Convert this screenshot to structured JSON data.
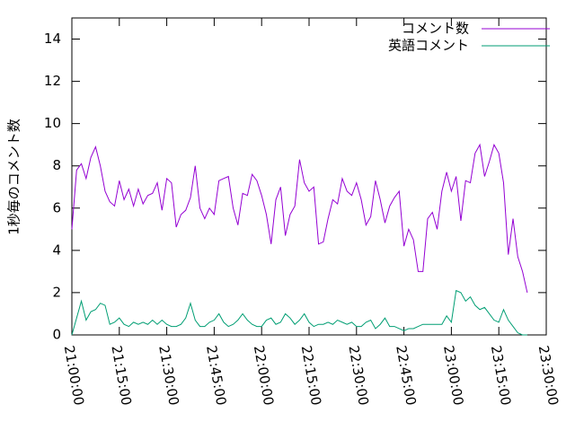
{
  "chart_data": {
    "type": "line",
    "y_label": "1秒毎のコメント数",
    "x": [
      "21:00:00",
      "21:01:30",
      "21:03:00",
      "21:04:30",
      "21:06:00",
      "21:07:30",
      "21:09:00",
      "21:10:30",
      "21:12:00",
      "21:13:30",
      "21:15:00",
      "21:16:30",
      "21:18:00",
      "21:19:30",
      "21:21:00",
      "21:22:30",
      "21:24:00",
      "21:25:30",
      "21:27:00",
      "21:28:30",
      "21:30:00",
      "21:31:30",
      "21:33:00",
      "21:34:30",
      "21:36:00",
      "21:37:30",
      "21:39:00",
      "21:40:30",
      "21:42:00",
      "21:43:30",
      "21:45:00",
      "21:46:30",
      "21:48:00",
      "21:49:30",
      "21:51:00",
      "21:52:30",
      "21:54:00",
      "21:55:30",
      "21:57:00",
      "21:58:30",
      "22:00:00",
      "22:01:30",
      "22:03:00",
      "22:04:30",
      "22:06:00",
      "22:07:30",
      "22:09:00",
      "22:10:30",
      "22:12:00",
      "22:13:30",
      "22:15:00",
      "22:16:30",
      "22:18:00",
      "22:19:30",
      "22:21:00",
      "22:22:30",
      "22:24:00",
      "22:25:30",
      "22:27:00",
      "22:28:30",
      "22:30:00",
      "22:31:30",
      "22:33:00",
      "22:34:30",
      "22:36:00",
      "22:37:30",
      "22:39:00",
      "22:40:30",
      "22:42:00",
      "22:43:30",
      "22:45:00",
      "22:46:30",
      "22:48:00",
      "22:49:30",
      "22:51:00",
      "22:52:30",
      "22:54:00",
      "22:55:30",
      "22:57:00",
      "22:58:30",
      "23:00:00",
      "23:01:30",
      "23:03:00",
      "23:04:30",
      "23:06:00",
      "23:07:30",
      "23:09:00",
      "23:10:30",
      "23:12:00",
      "23:13:30",
      "23:15:00",
      "23:16:30",
      "23:18:00",
      "23:19:30",
      "23:21:00",
      "23:22:30",
      "23:24:00"
    ],
    "series": [
      {
        "name": "コメント数",
        "color": "#9400d3",
        "values": [
          5.0,
          7.8,
          8.1,
          7.4,
          8.4,
          8.9,
          8.0,
          6.8,
          6.3,
          6.1,
          7.3,
          6.4,
          6.9,
          6.1,
          6.9,
          6.2,
          6.6,
          6.7,
          7.2,
          5.9,
          7.4,
          7.2,
          5.1,
          5.7,
          5.9,
          6.5,
          8.0,
          6.0,
          5.5,
          6.0,
          5.7,
          7.3,
          7.4,
          7.5,
          6.0,
          5.2,
          6.7,
          6.6,
          7.6,
          7.3,
          6.6,
          5.7,
          4.3,
          6.4,
          7.0,
          4.7,
          5.7,
          6.1,
          8.3,
          7.2,
          6.8,
          7.0,
          4.3,
          4.4,
          5.5,
          6.4,
          6.2,
          7.4,
          6.8,
          6.6,
          7.2,
          6.4,
          5.2,
          5.6,
          7.3,
          6.4,
          5.3,
          6.1,
          6.5,
          6.8,
          4.2,
          5.0,
          4.5,
          3.0,
          3.0,
          5.5,
          5.8,
          5.0,
          6.8,
          7.7,
          6.8,
          7.5,
          5.4,
          7.3,
          7.2,
          8.6,
          9.0,
          7.5,
          8.2,
          9.0,
          8.6,
          7.2,
          3.8,
          5.5,
          3.7,
          3.0,
          2.0
        ]
      },
      {
        "name": "英語コメント",
        "color": "#009e73",
        "values": [
          0.0,
          0.8,
          1.6,
          0.7,
          1.1,
          1.2,
          1.5,
          1.4,
          0.5,
          0.6,
          0.8,
          0.5,
          0.4,
          0.6,
          0.5,
          0.6,
          0.5,
          0.7,
          0.5,
          0.7,
          0.5,
          0.4,
          0.4,
          0.5,
          0.8,
          1.5,
          0.7,
          0.4,
          0.4,
          0.6,
          0.7,
          1.0,
          0.6,
          0.4,
          0.5,
          0.7,
          1.0,
          0.7,
          0.5,
          0.4,
          0.4,
          0.7,
          0.8,
          0.5,
          0.6,
          1.0,
          0.8,
          0.5,
          0.7,
          1.0,
          0.6,
          0.4,
          0.5,
          0.5,
          0.6,
          0.5,
          0.7,
          0.6,
          0.5,
          0.6,
          0.4,
          0.4,
          0.6,
          0.7,
          0.3,
          0.5,
          0.8,
          0.4,
          0.4,
          0.3,
          0.2,
          0.3,
          0.3,
          0.4,
          0.5,
          0.5,
          0.5,
          0.5,
          0.5,
          0.9,
          0.6,
          2.1,
          2.0,
          1.6,
          1.8,
          1.4,
          1.2,
          1.3,
          1.0,
          0.7,
          0.6,
          1.2,
          0.7,
          0.4,
          0.1,
          0.0,
          0.0
        ]
      }
    ],
    "xlim": [
      "21:00:00",
      "23:30:00"
    ],
    "xticks": [
      "21:00:00",
      "21:15:00",
      "21:30:00",
      "21:45:00",
      "22:00:00",
      "22:15:00",
      "22:30:00",
      "22:45:00",
      "23:00:00",
      "23:15:00",
      "23:30:00"
    ],
    "ylim": [
      0,
      15
    ],
    "yticks": [
      0,
      2,
      4,
      6,
      8,
      10,
      12,
      14
    ],
    "legend": "top-right"
  }
}
